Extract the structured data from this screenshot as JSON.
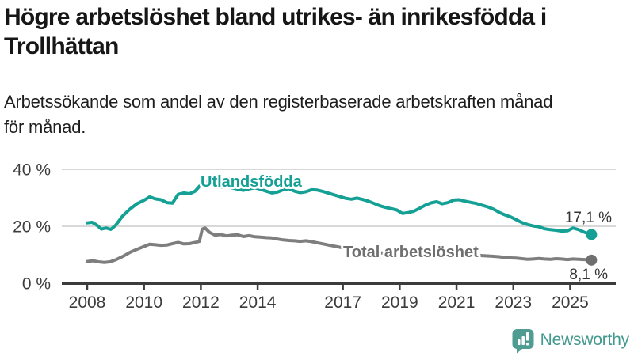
{
  "header": {
    "title": "Högre arbetslöshet bland utrikes- än inrikesfödda i Trollhättan",
    "title_lines": [
      "Högre arbetslöshet bland utrikes- än inrikesfödda i",
      "Trollhättan"
    ],
    "subtitle": "Arbetssökande som andel av den registerbaserade arbetskraften månad för månad.",
    "subtitle_lines": [
      "Arbetssökande som andel av den registerbaserade arbetskraften månad",
      "för månad."
    ]
  },
  "colors": {
    "series_foreign_born": "#14a094",
    "series_total": "#7e7e7e",
    "series_total_label": "#6f6f6f",
    "gridline": "#d8d8d8",
    "axis": "#3c3c3c",
    "value_label": "#333333",
    "logo_teal": "#4f9d92",
    "logo_text_teal": "#44998e",
    "title_text": "#161616"
  },
  "branding": {
    "logo_text": "Newsworthy",
    "logo_icon": "bar-chart-speech-bubble-icon"
  },
  "chart_data": {
    "type": "line",
    "title": "Högre arbetslöshet bland utrikes- än inrikesfödda i Trollhättan",
    "subtitle": "Arbetssökande som andel av den registerbaserade arbetskraften månad för månad.",
    "xlabel": "",
    "ylabel": "",
    "ylim": [
      0,
      43
    ],
    "xlim": [
      2007.1,
      2026.5
    ],
    "grid": "horizontal",
    "legend_position": "inline-labels",
    "y_ticks": [
      {
        "value": 40,
        "label": "40 %"
      },
      {
        "value": 20,
        "label": "20 %"
      },
      {
        "value": 0,
        "label": "0 %"
      }
    ],
    "x_ticks": [
      {
        "value": 2008,
        "label": "2008"
      },
      {
        "value": 2010,
        "label": "2010"
      },
      {
        "value": 2012,
        "label": "2012"
      },
      {
        "value": 2014,
        "label": "2014"
      },
      {
        "value": 2017,
        "label": "2017"
      },
      {
        "value": 2019,
        "label": "2019"
      },
      {
        "value": 2021,
        "label": "2021"
      },
      {
        "value": 2023,
        "label": "2023"
      },
      {
        "value": 2025,
        "label": "2025"
      }
    ],
    "series": [
      {
        "name": "Utlandsfödda",
        "color": "#14a094",
        "dot_color": "#14a094",
        "end_value": 17.1,
        "end_label": "17,1 %",
        "points": [
          [
            2008.0,
            21.2
          ],
          [
            2008.17,
            21.4
          ],
          [
            2008.33,
            20.5
          ],
          [
            2008.5,
            19.0
          ],
          [
            2008.67,
            19.4
          ],
          [
            2008.83,
            18.9
          ],
          [
            2009.0,
            20.3
          ],
          [
            2009.25,
            23.6
          ],
          [
            2009.5,
            26.0
          ],
          [
            2009.75,
            27.9
          ],
          [
            2010.0,
            29.1
          ],
          [
            2010.2,
            30.3
          ],
          [
            2010.4,
            29.6
          ],
          [
            2010.6,
            29.3
          ],
          [
            2010.8,
            28.3
          ],
          [
            2011.0,
            28.1
          ],
          [
            2011.2,
            31.2
          ],
          [
            2011.4,
            31.7
          ],
          [
            2011.6,
            31.4
          ],
          [
            2011.8,
            32.3
          ],
          [
            2012.0,
            34.6
          ],
          [
            2012.15,
            35.7
          ],
          [
            2012.3,
            35.1
          ],
          [
            2012.5,
            34.2
          ],
          [
            2012.7,
            33.6
          ],
          [
            2012.9,
            34.0
          ],
          [
            2013.1,
            33.5
          ],
          [
            2013.3,
            33.0
          ],
          [
            2013.5,
            32.6
          ],
          [
            2013.7,
            33.1
          ],
          [
            2013.9,
            33.5
          ],
          [
            2014.1,
            33.0
          ],
          [
            2014.3,
            32.3
          ],
          [
            2014.5,
            31.7
          ],
          [
            2014.7,
            32.0
          ],
          [
            2014.9,
            32.8
          ],
          [
            2015.1,
            33.2
          ],
          [
            2015.3,
            32.3
          ],
          [
            2015.5,
            31.8
          ],
          [
            2015.7,
            32.1
          ],
          [
            2015.9,
            32.8
          ],
          [
            2016.1,
            32.7
          ],
          [
            2016.3,
            32.2
          ],
          [
            2016.5,
            31.6
          ],
          [
            2016.7,
            31.0
          ],
          [
            2016.9,
            30.4
          ],
          [
            2017.1,
            29.8
          ],
          [
            2017.3,
            29.5
          ],
          [
            2017.5,
            29.9
          ],
          [
            2017.7,
            29.4
          ],
          [
            2017.9,
            28.8
          ],
          [
            2018.1,
            28.0
          ],
          [
            2018.3,
            27.2
          ],
          [
            2018.5,
            26.6
          ],
          [
            2018.7,
            26.2
          ],
          [
            2018.9,
            25.7
          ],
          [
            2019.1,
            24.5
          ],
          [
            2019.3,
            24.8
          ],
          [
            2019.5,
            25.3
          ],
          [
            2019.7,
            26.3
          ],
          [
            2019.9,
            27.4
          ],
          [
            2020.1,
            28.2
          ],
          [
            2020.3,
            28.6
          ],
          [
            2020.5,
            27.9
          ],
          [
            2020.7,
            28.3
          ],
          [
            2020.9,
            29.2
          ],
          [
            2021.1,
            29.3
          ],
          [
            2021.3,
            28.8
          ],
          [
            2021.5,
            28.4
          ],
          [
            2021.7,
            28.0
          ],
          [
            2021.9,
            27.4
          ],
          [
            2022.1,
            26.8
          ],
          [
            2022.3,
            26.0
          ],
          [
            2022.5,
            24.9
          ],
          [
            2022.7,
            24.0
          ],
          [
            2022.9,
            23.3
          ],
          [
            2023.1,
            22.3
          ],
          [
            2023.3,
            21.3
          ],
          [
            2023.5,
            20.6
          ],
          [
            2023.7,
            20.1
          ],
          [
            2023.9,
            19.8
          ],
          [
            2024.1,
            19.1
          ],
          [
            2024.3,
            18.8
          ],
          [
            2024.5,
            18.6
          ],
          [
            2024.7,
            18.3
          ],
          [
            2024.9,
            18.4
          ],
          [
            2025.1,
            19.4
          ],
          [
            2025.3,
            18.8
          ],
          [
            2025.5,
            17.9
          ],
          [
            2025.75,
            17.1
          ]
        ]
      },
      {
        "name": "Total arbetslöshet",
        "color": "#7e7e7e",
        "dot_color": "#6f6f6f",
        "end_value": 8.1,
        "end_label": "8,1 %",
        "points": [
          [
            2008.0,
            7.6
          ],
          [
            2008.2,
            7.9
          ],
          [
            2008.4,
            7.5
          ],
          [
            2008.6,
            7.3
          ],
          [
            2008.8,
            7.5
          ],
          [
            2009.0,
            8.2
          ],
          [
            2009.25,
            9.4
          ],
          [
            2009.5,
            10.8
          ],
          [
            2009.75,
            11.9
          ],
          [
            2010.0,
            12.9
          ],
          [
            2010.2,
            13.7
          ],
          [
            2010.4,
            13.5
          ],
          [
            2010.6,
            13.3
          ],
          [
            2010.8,
            13.4
          ],
          [
            2011.0,
            13.9
          ],
          [
            2011.2,
            14.3
          ],
          [
            2011.4,
            13.8
          ],
          [
            2011.6,
            13.9
          ],
          [
            2011.8,
            14.3
          ],
          [
            2011.95,
            14.7
          ],
          [
            2012.05,
            19.0
          ],
          [
            2012.15,
            19.4
          ],
          [
            2012.3,
            17.9
          ],
          [
            2012.5,
            16.9
          ],
          [
            2012.7,
            17.1
          ],
          [
            2012.9,
            16.6
          ],
          [
            2013.1,
            16.9
          ],
          [
            2013.3,
            17.0
          ],
          [
            2013.5,
            16.4
          ],
          [
            2013.7,
            16.7
          ],
          [
            2013.9,
            16.3
          ],
          [
            2014.1,
            16.2
          ],
          [
            2014.3,
            16.0
          ],
          [
            2014.5,
            15.9
          ],
          [
            2014.7,
            15.5
          ],
          [
            2014.9,
            15.2
          ],
          [
            2015.1,
            15.0
          ],
          [
            2015.3,
            14.9
          ],
          [
            2015.5,
            14.7
          ],
          [
            2015.7,
            14.9
          ],
          [
            2015.9,
            14.6
          ],
          [
            2016.1,
            14.2
          ],
          [
            2016.3,
            13.8
          ],
          [
            2016.5,
            13.4
          ],
          [
            2016.7,
            13.0
          ],
          [
            2016.9,
            12.6
          ],
          [
            2017.1,
            12.2
          ],
          [
            2017.4,
            11.7
          ],
          [
            2017.7,
            11.3
          ],
          [
            2018.0,
            11.0
          ],
          [
            2018.3,
            10.7
          ],
          [
            2018.6,
            10.4
          ],
          [
            2018.9,
            10.1
          ],
          [
            2019.2,
            10.0
          ],
          [
            2019.5,
            10.2
          ],
          [
            2019.8,
            10.5
          ],
          [
            2020.1,
            11.0
          ],
          [
            2020.4,
            11.6
          ],
          [
            2020.7,
            11.3
          ],
          [
            2021.0,
            10.9
          ],
          [
            2021.3,
            10.4
          ],
          [
            2021.6,
            10.0
          ],
          [
            2021.9,
            9.7
          ],
          [
            2022.2,
            9.5
          ],
          [
            2022.5,
            9.3
          ],
          [
            2022.7,
            9.0
          ],
          [
            2022.9,
            8.9
          ],
          [
            2023.1,
            8.8
          ],
          [
            2023.3,
            8.6
          ],
          [
            2023.5,
            8.4
          ],
          [
            2023.7,
            8.5
          ],
          [
            2023.9,
            8.7
          ],
          [
            2024.1,
            8.5
          ],
          [
            2024.3,
            8.4
          ],
          [
            2024.5,
            8.6
          ],
          [
            2024.7,
            8.5
          ],
          [
            2024.9,
            8.3
          ],
          [
            2025.1,
            8.5
          ],
          [
            2025.3,
            8.4
          ],
          [
            2025.5,
            8.3
          ],
          [
            2025.75,
            8.1
          ]
        ]
      }
    ]
  }
}
